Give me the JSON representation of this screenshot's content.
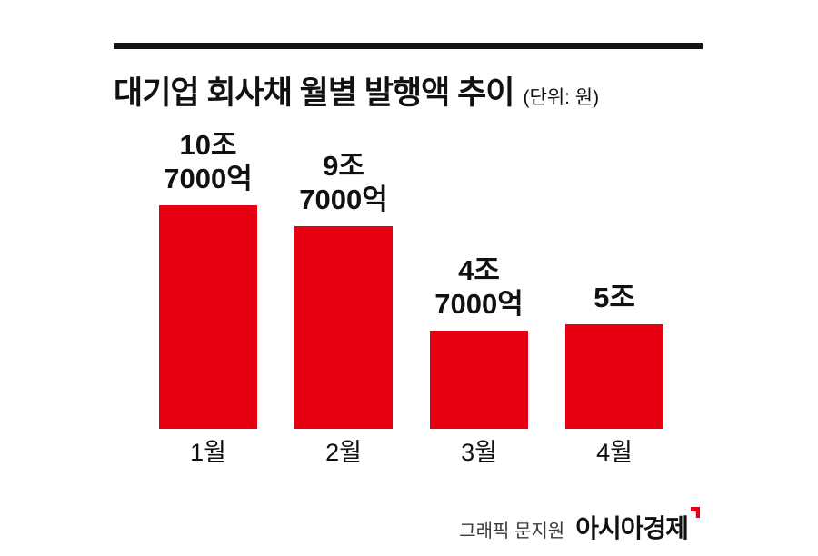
{
  "header": {
    "title": "대기업 회사채 월별 발행액 추이",
    "unit_label": "(단위: 원)"
  },
  "chart_data": {
    "type": "bar",
    "title": "대기업 회사채 월별 발행액 추이",
    "unit": "원",
    "categories": [
      "1월",
      "2월",
      "3월",
      "4월"
    ],
    "values": [
      10.7,
      9.7,
      4.7,
      5.0
    ],
    "values_unit": "조 원",
    "value_labels": [
      [
        "10조",
        "7000억"
      ],
      [
        "9조",
        "7000억"
      ],
      [
        "4조",
        "7000억"
      ],
      [
        "5조"
      ]
    ],
    "ylim": [
      0,
      11.5
    ],
    "grid": false,
    "legend": false,
    "bar_color": "#e60012",
    "text_color": "#111111"
  },
  "footer": {
    "credit": "그래픽 문지원",
    "brand": "아시아경제"
  }
}
